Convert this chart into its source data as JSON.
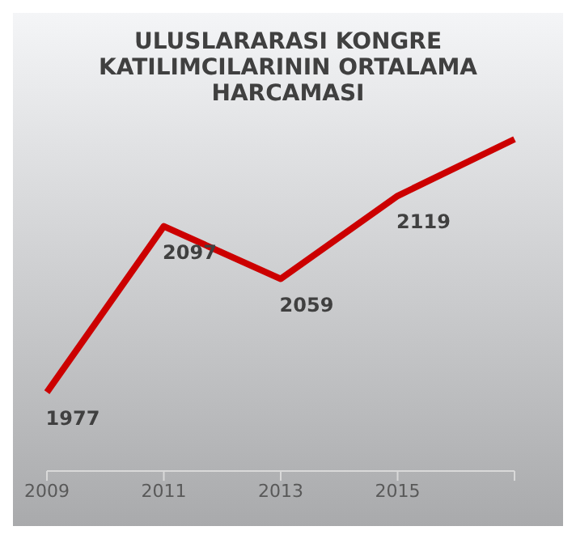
{
  "chart_data": {
    "type": "line",
    "title": "ULUSLARARASI KONGRE KATILIMCILARININ ORTALAMA HARCAMASI",
    "categories": [
      "2009",
      "2011",
      "2013",
      "2015",
      null
    ],
    "series": [
      {
        "color": "#cc0000",
        "values": [
          1977,
          2097,
          2059,
          2119,
          2160
        ],
        "value_labels": [
          "1977",
          "2097",
          "2059",
          "2119",
          null
        ]
      }
    ],
    "tick_labels": "x",
    "marker": "none",
    "line_style": "solid"
  }
}
